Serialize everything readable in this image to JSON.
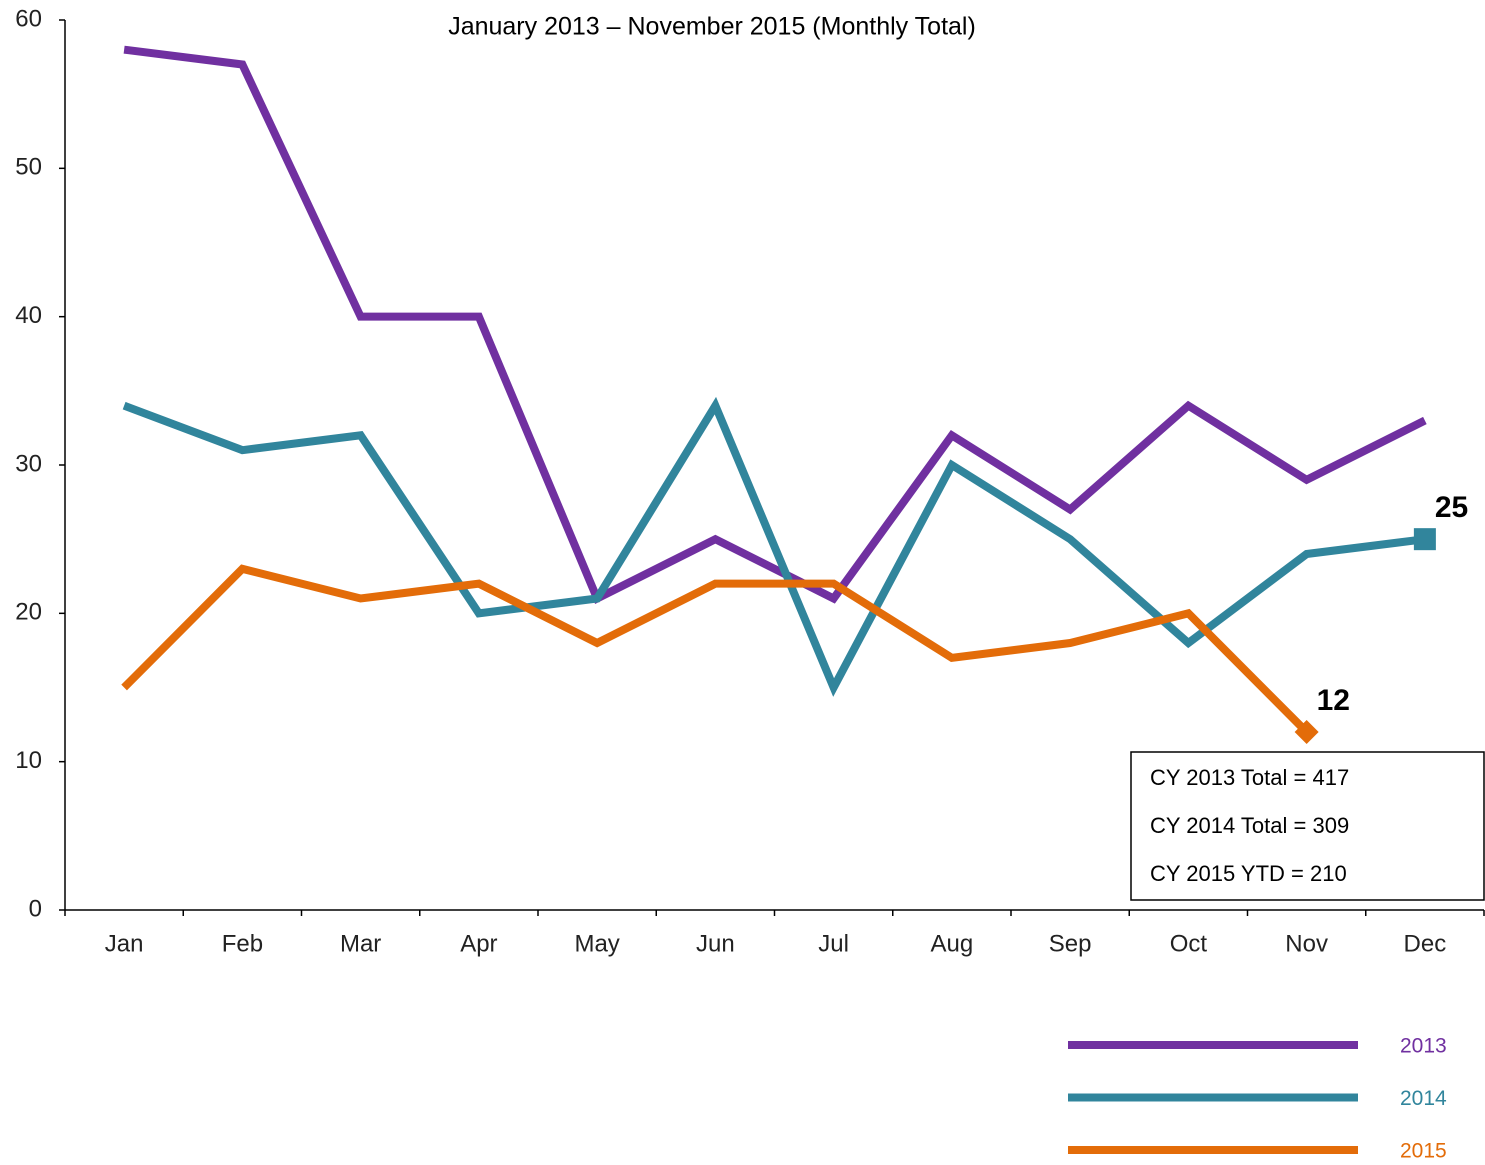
{
  "chart_data": {
    "type": "line",
    "title": "January 2013 –  November 2015 (Monthly Total)",
    "categories": [
      "Jan",
      "Feb",
      "Mar",
      "Apr",
      "May",
      "Jun",
      "Jul",
      "Aug",
      "Sep",
      "Oct",
      "Nov",
      "Dec"
    ],
    "series": [
      {
        "name": "2013",
        "color": "#7030a0",
        "values": [
          58,
          57,
          40,
          40,
          21,
          25,
          21,
          32,
          27,
          34,
          29,
          33
        ]
      },
      {
        "name": "2014",
        "color": "#31859c",
        "values": [
          34,
          31,
          32,
          20,
          21,
          34,
          15,
          30,
          25,
          18,
          24,
          25
        ],
        "end_marker": "square"
      },
      {
        "name": "2015",
        "color": "#e36c09",
        "values": [
          15,
          23,
          21,
          22,
          18,
          22,
          22,
          17,
          18,
          20,
          12,
          null
        ],
        "end_marker": "diamond"
      }
    ],
    "annotations": [
      "CY 2013 Total = 417",
      "CY 2014 Total = 309",
      "CY 2015 YTD =   210"
    ],
    "ylim": [
      0,
      60
    ],
    "yticks": [
      0,
      10,
      20,
      30,
      40,
      50,
      60
    ],
    "grid": false
  }
}
